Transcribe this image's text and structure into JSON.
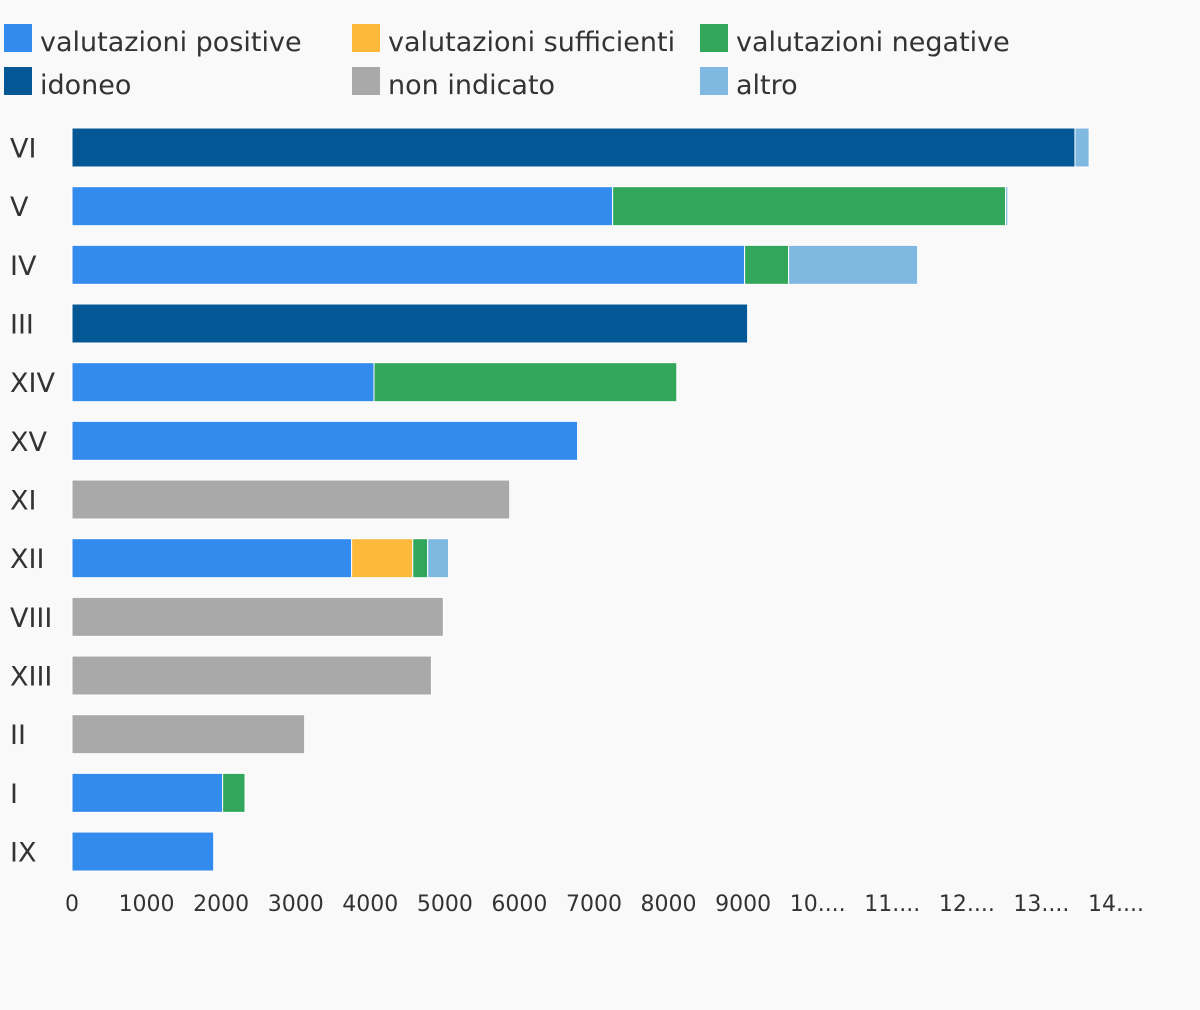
{
  "chart_data": {
    "type": "bar",
    "orientation": "horizontal",
    "stacked": true,
    "title": "",
    "xlabel": "",
    "ylabel": "",
    "xlim": [
      0,
      14500
    ],
    "grid": false,
    "legend_position": "top",
    "x_ticks": [
      "0",
      "1000",
      "2000",
      "3000",
      "4000",
      "5000",
      "6000",
      "7000",
      "8000",
      "9000",
      "10....",
      "11....",
      "12....",
      "13....",
      "14...."
    ],
    "x_tick_values": [
      0,
      1000,
      2000,
      3000,
      4000,
      5000,
      6000,
      7000,
      8000,
      9000,
      10000,
      11000,
      12000,
      13000,
      14000
    ],
    "categories": [
      "VI",
      "V",
      "IV",
      "III",
      "XIV",
      "XV",
      "XI",
      "XII",
      "VIII",
      "XIII",
      "II",
      "I",
      "IX"
    ],
    "series": [
      {
        "name": "valutazioni positive",
        "color": "#338bed",
        "values": [
          0,
          7250,
          9020,
          0,
          4050,
          6780,
          0,
          3750,
          0,
          0,
          0,
          2020,
          1900
        ]
      },
      {
        "name": "valutazioni sufficienti",
        "color": "#fdb93b",
        "values": [
          0,
          0,
          0,
          0,
          0,
          0,
          0,
          820,
          0,
          0,
          0,
          0,
          0
        ]
      },
      {
        "name": "valutazioni negative",
        "color": "#32a65b",
        "values": [
          0,
          5270,
          590,
          0,
          4060,
          0,
          0,
          200,
          0,
          0,
          0,
          300,
          0
        ]
      },
      {
        "name": "idoneo",
        "color": "#035794",
        "values": [
          13450,
          0,
          0,
          9060,
          0,
          0,
          0,
          0,
          0,
          0,
          0,
          0,
          0
        ]
      },
      {
        "name": "non indicato",
        "color": "#a9a9a9",
        "values": [
          0,
          0,
          0,
          0,
          0,
          0,
          5870,
          0,
          4980,
          4820,
          3120,
          0,
          0
        ]
      },
      {
        "name": "altro",
        "color": "#7fb8e0",
        "values": [
          190,
          30,
          1730,
          0,
          0,
          0,
          0,
          280,
          0,
          0,
          0,
          0,
          0
        ]
      }
    ]
  }
}
